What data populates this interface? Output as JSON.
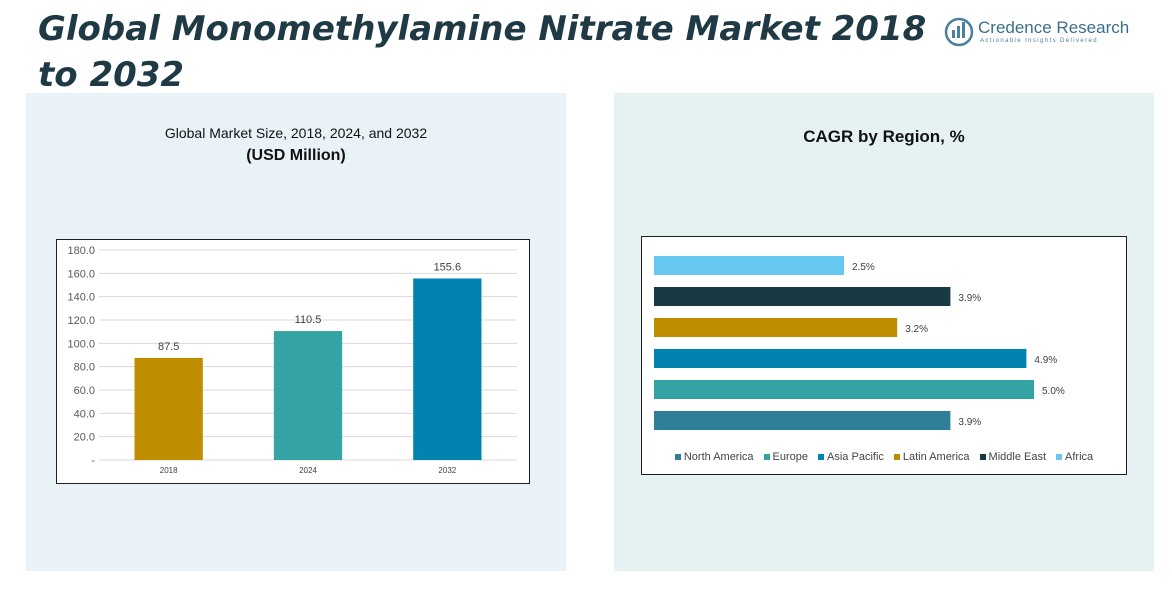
{
  "header": {
    "title": "Global Monomethylamine Nitrate Market 2018 to 2032",
    "logo_name": "Credence Research",
    "logo_tagline": "Actionable Insights Delivered"
  },
  "left_panel": {
    "subtitle": "Global Market Size, 2018, 2024, and 2032",
    "unit": "(USD Million)"
  },
  "right_panel": {
    "title": "CAGR by Region, %"
  },
  "chart_data": [
    {
      "type": "bar",
      "title": "Global Market Size, 2018, 2024, and 2032",
      "ylabel": "(USD Million)",
      "categories": [
        "2018",
        "2024",
        "2032"
      ],
      "values": [
        87.5,
        110.5,
        155.6
      ],
      "value_labels": [
        "87.5",
        "110.5",
        "155.6"
      ],
      "colors": [
        "#be8e00",
        "#33a3a3",
        "#0183b0"
      ],
      "ylim": [
        0,
        180
      ],
      "yticks": [
        "-",
        "20.0",
        "40.0",
        "60.0",
        "80.0",
        "100.0",
        "120.0",
        "140.0",
        "160.0",
        "180.0"
      ],
      "grid": true
    },
    {
      "type": "bar",
      "orientation": "horizontal",
      "title": "CAGR by Region, %",
      "categories": [
        "Africa",
        "Middle East",
        "Latin America",
        "Asia Pacific",
        "Europe",
        "North America"
      ],
      "values": [
        2.5,
        3.9,
        3.2,
        4.9,
        5.0,
        3.9
      ],
      "value_labels": [
        "2.5%",
        "3.9%",
        "3.2%",
        "4.9%",
        "5.0%",
        "3.9%"
      ],
      "colors": [
        "#66c8f0",
        "#173a44",
        "#be8e00",
        "#0183b0",
        "#33a3a3",
        "#2f7f98"
      ],
      "xlim": [
        0,
        5.0
      ],
      "legend": [
        "North America",
        "Europe",
        "Asia Pacific",
        "Latin America",
        "Middle East",
        "Africa"
      ],
      "legend_colors": [
        "#2f7f98",
        "#33a3a3",
        "#0183b0",
        "#be8e00",
        "#173a44",
        "#66c8f0"
      ],
      "legend_position": "bottom",
      "grid": false
    }
  ]
}
